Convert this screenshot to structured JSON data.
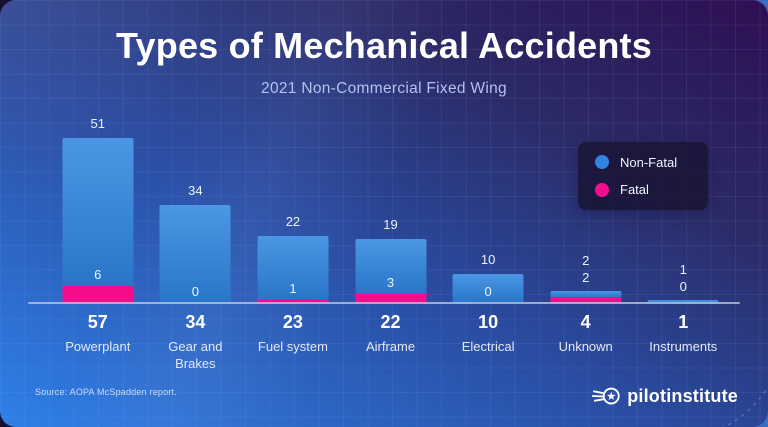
{
  "header": {
    "title": "Types of Mechanical Accidents",
    "subtitle": "2021 Non-Commercial Fixed Wing"
  },
  "legend": {
    "items": [
      {
        "label": "Non-Fatal",
        "color": "#2e86e0"
      },
      {
        "label": "Fatal",
        "color": "#f50d8c"
      }
    ]
  },
  "chart_data": {
    "type": "bar",
    "stacked": true,
    "title": "Types of Mechanical Accidents",
    "subtitle": "2021 Non-Commercial Fixed Wing",
    "categories": [
      "Powerplant",
      "Gear and Brakes",
      "Fuel system",
      "Airframe",
      "Electrical",
      "Unknown",
      "Instruments"
    ],
    "series": [
      {
        "name": "Non-Fatal",
        "color": "#2e86e0",
        "values": [
          51,
          34,
          22,
          19,
          10,
          2,
          1
        ]
      },
      {
        "name": "Fatal",
        "color": "#f50d8c",
        "values": [
          6,
          0,
          1,
          3,
          0,
          2,
          0
        ]
      }
    ],
    "totals": [
      57,
      34,
      23,
      22,
      10,
      4,
      1
    ],
    "value_labels": true,
    "xlabel": "",
    "ylabel": "",
    "ylim": [
      0,
      57
    ],
    "grid": true,
    "legend_position": "upper right"
  },
  "footer": {
    "source": "Source: AOPA McSpadden report.",
    "brand": "pilotinstitute"
  },
  "colors": {
    "background_top": "#2e0f52",
    "background_bottom": "#2f80e8",
    "nonfatal": "#2e86e0",
    "fatal": "#f50d8c",
    "legend_bg": "#1a163a",
    "axis_line": "#c6cdd c"
  }
}
